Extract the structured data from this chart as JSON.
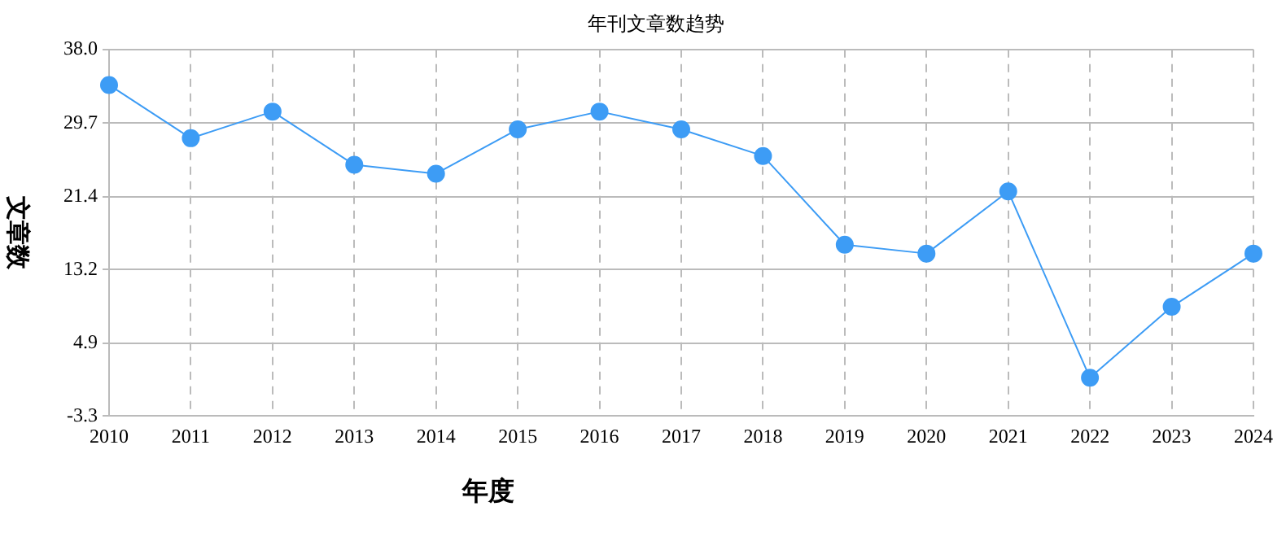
{
  "chart_data": {
    "type": "line",
    "title": "年刊文章数趋势",
    "xlabel": "年度",
    "ylabel": "文章数",
    "categories": [
      "2010",
      "2011",
      "2012",
      "2013",
      "2014",
      "2015",
      "2016",
      "2017",
      "2018",
      "2019",
      "2020",
      "2021",
      "2022",
      "2023",
      "2024"
    ],
    "series": [
      {
        "color": "#3d9cf5",
        "values": [
          34,
          28,
          31,
          25,
          24,
          29,
          31,
          29,
          26,
          16,
          15,
          22,
          1,
          9,
          15
        ]
      }
    ],
    "ylim": [
      -3.3,
      38
    ],
    "yticks": [
      -3.3,
      4.9,
      13.2,
      21.4,
      29.7,
      {
        "value": 38,
        "label": "38.0"
      }
    ],
    "grid": true,
    "legend": false,
    "marker": "circle",
    "line_style": "solid"
  }
}
